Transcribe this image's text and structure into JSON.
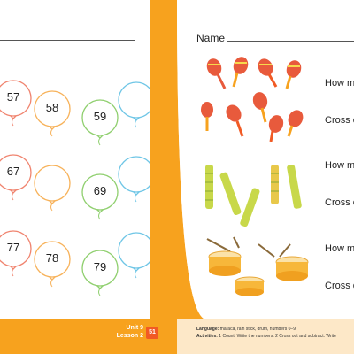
{
  "left_balloons": [
    {
      "number": "57",
      "color": "#f0846f"
    },
    {
      "number": "58",
      "color": "#f7b25a"
    },
    {
      "number": "59",
      "color": "#8fcf6e"
    },
    {
      "number": "",
      "color": "#6fc6e6"
    },
    {
      "number": "67",
      "color": "#f0846f"
    },
    {
      "number": "",
      "color": "#f7b25a"
    },
    {
      "number": "69",
      "color": "#8fcf6e"
    },
    {
      "number": "",
      "color": "#6fc6e6"
    },
    {
      "number": "77",
      "color": "#f0846f"
    },
    {
      "number": "78",
      "color": "#f7b25a"
    },
    {
      "number": "79",
      "color": "#8fcf6e"
    },
    {
      "number": "",
      "color": "#6fc6e6"
    }
  ],
  "right_page": {
    "name_label": "Name",
    "questions": [
      "How m",
      "Cross o",
      "How m",
      "Cross o",
      "How m",
      "Cross o"
    ]
  },
  "footer": {
    "unit": "Unit 9",
    "lesson": "Lesson 2",
    "page_number": "51",
    "language_label": "Language:",
    "language_text": "maraca, rain stick, drum, numbers 0–9.",
    "activities_label": "Activities:",
    "activities_text": "1 Count. Write the numbers. 2 Cross out and subtract. Write"
  },
  "colors": {
    "accent_orange": "#f7a21e",
    "page_badge": "#f15a24",
    "footer_light": "#fde8c8"
  }
}
